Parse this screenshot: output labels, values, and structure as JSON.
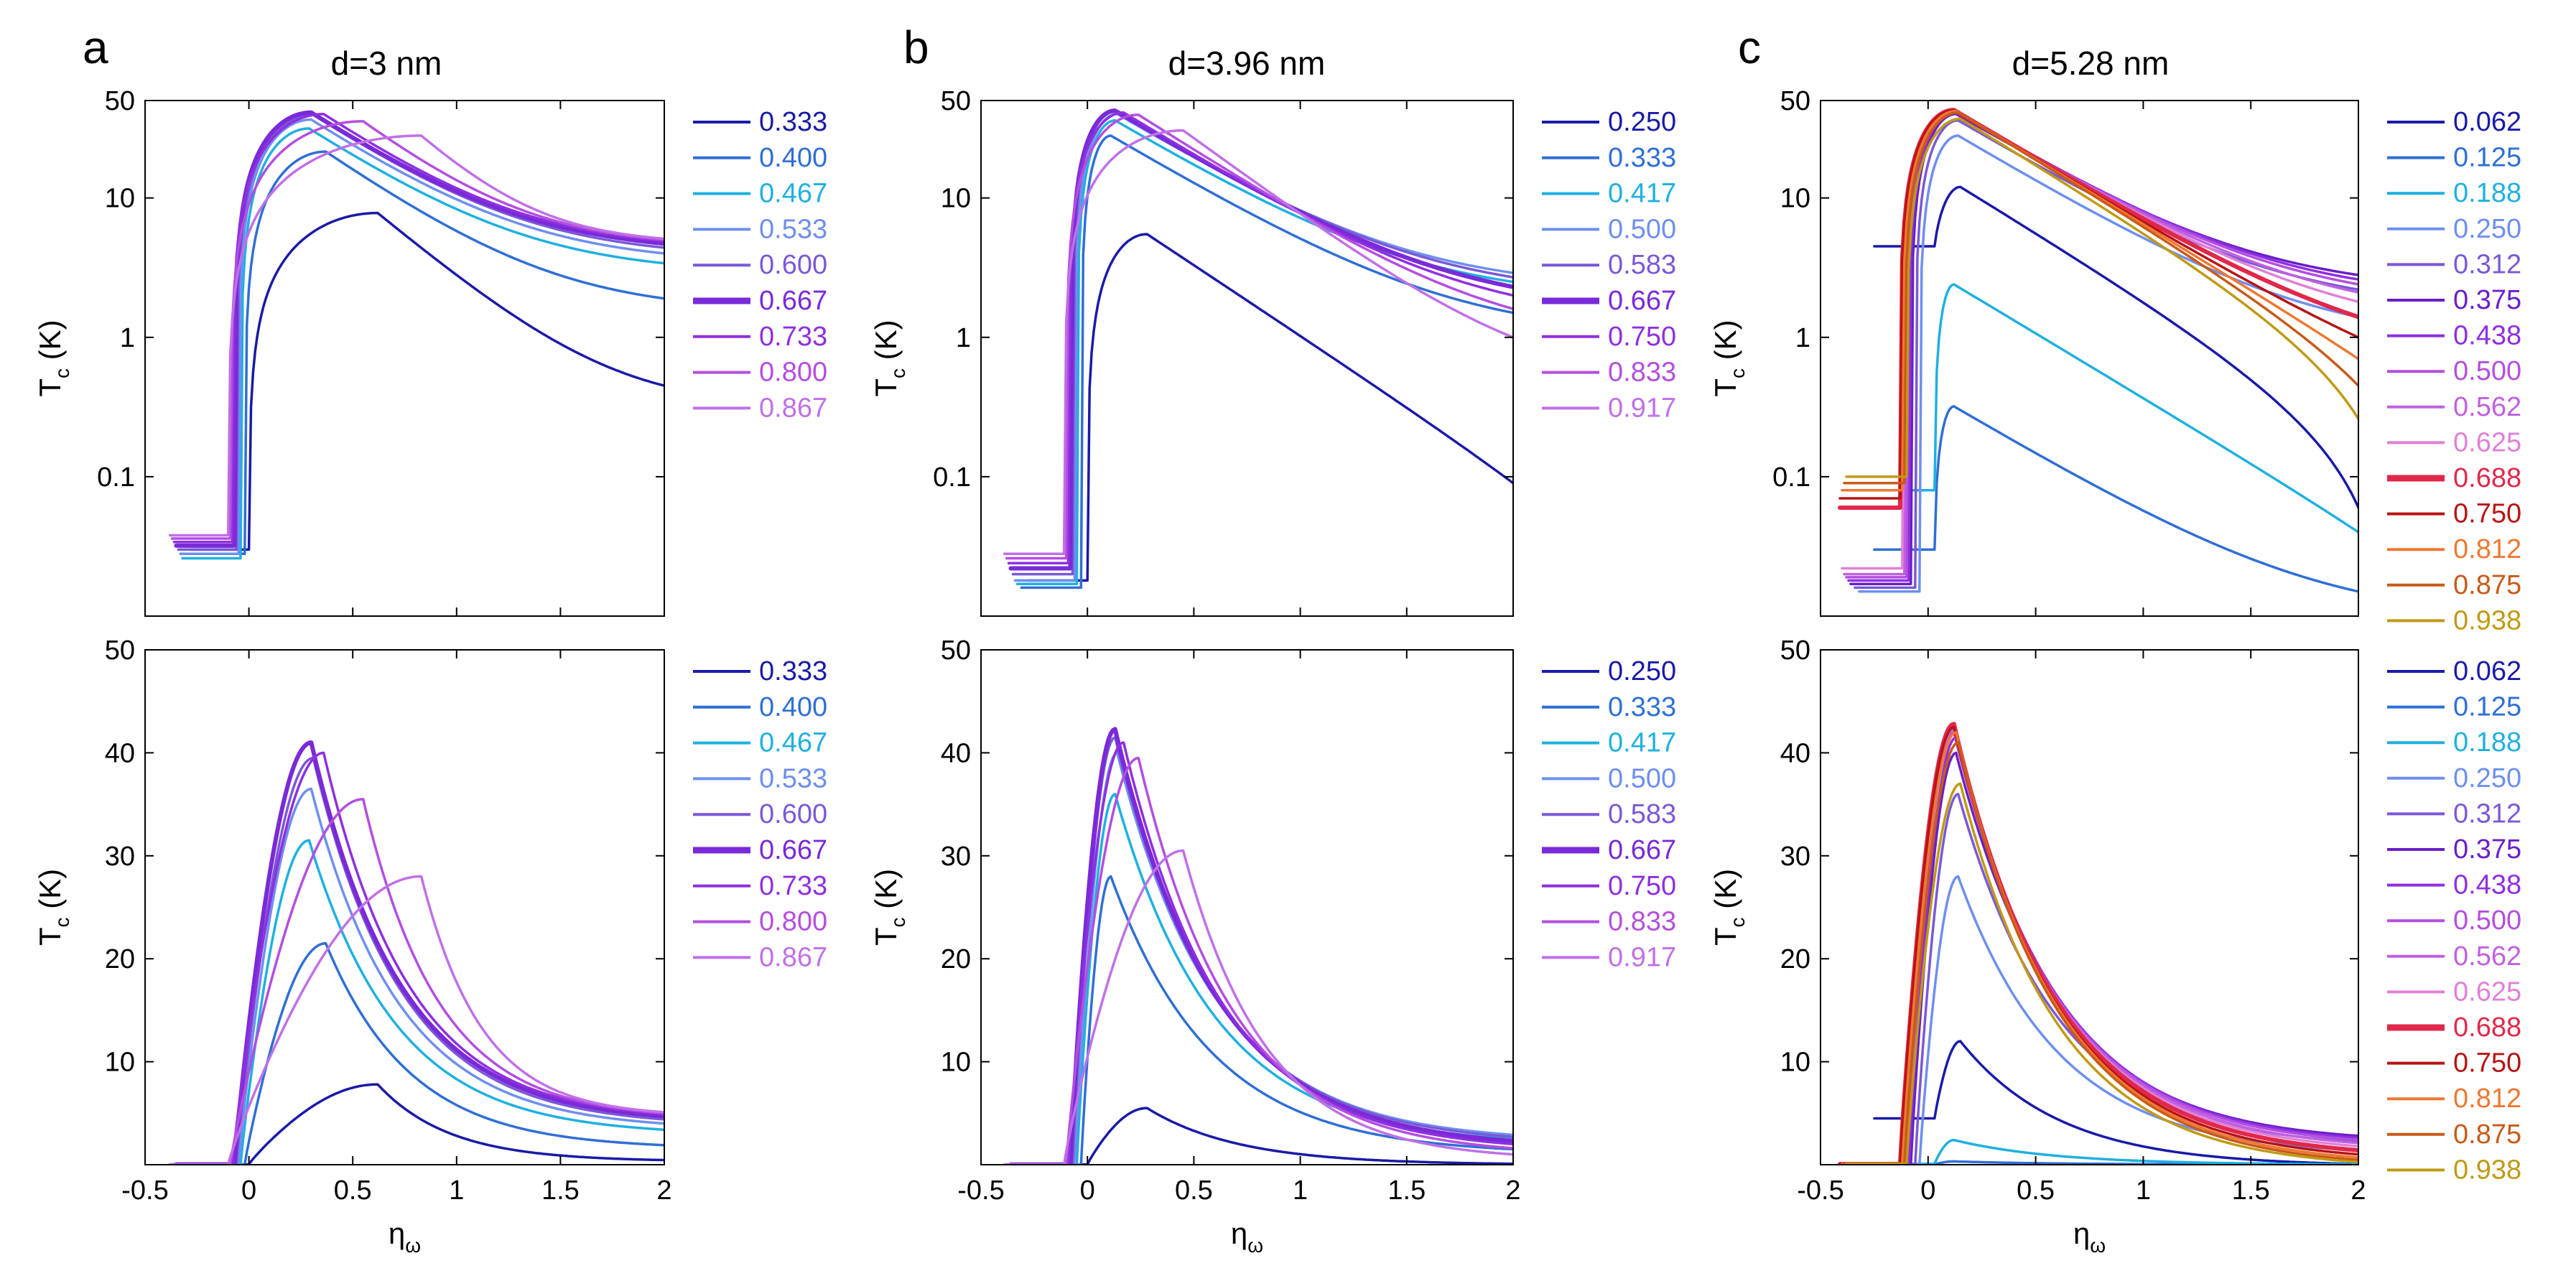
{
  "chart_data": [
    {
      "type": "line",
      "panel": "a",
      "row": "top",
      "title": "d=3 nm",
      "xlabel": "η_ω",
      "ylabel": "T_c (K)",
      "yscale": "log",
      "xlim": [
        -0.5,
        2
      ],
      "ylim": [
        0.01,
        50
      ],
      "xticks": [
        -0.5,
        0,
        0.5,
        1,
        1.5,
        2
      ],
      "xtick_labels": [],
      "yticks": [
        0.1,
        1,
        10,
        50
      ],
      "ytick_labels": [
        "0.1",
        "1",
        "10",
        "50"
      ],
      "legend_position": "right",
      "series": [
        {
          "name": "0.333",
          "color": "#1a1aa8",
          "bold": false,
          "peak_x": 0.62,
          "peak_y": 7.8,
          "onset": 0.0,
          "base": 0.03,
          "tail": 0.45
        },
        {
          "name": "0.400",
          "color": "#2f6fd6",
          "bold": false,
          "peak_x": 0.37,
          "peak_y": 21.5,
          "onset": -0.02,
          "base": 0.028,
          "tail": 1.9
        },
        {
          "name": "0.467",
          "color": "#1fb0e0",
          "bold": false,
          "peak_x": 0.29,
          "peak_y": 31.5,
          "onset": -0.04,
          "base": 0.026,
          "tail": 3.4
        },
        {
          "name": "0.533",
          "color": "#6e8ff0",
          "bold": false,
          "peak_x": 0.3,
          "peak_y": 36.5,
          "onset": -0.05,
          "base": 0.028,
          "tail": 4.0
        },
        {
          "name": "0.600",
          "color": "#7a58d8",
          "bold": false,
          "peak_x": 0.31,
          "peak_y": 39.5,
          "onset": -0.06,
          "base": 0.03,
          "tail": 4.4
        },
        {
          "name": "0.667",
          "color": "#7a2ad8",
          "bold": true,
          "peak_x": 0.3,
          "peak_y": 41.0,
          "onset": -0.07,
          "base": 0.032,
          "tail": 4.7
        },
        {
          "name": "0.733",
          "color": "#8f2fe0",
          "bold": false,
          "peak_x": 0.36,
          "peak_y": 40.0,
          "onset": -0.08,
          "base": 0.034,
          "tail": 4.9
        },
        {
          "name": "0.800",
          "color": "#b44ee0",
          "bold": false,
          "peak_x": 0.55,
          "peak_y": 35.5,
          "onset": -0.09,
          "base": 0.036,
          "tail": 5.0
        },
        {
          "name": "0.867",
          "color": "#c070e8",
          "bold": false,
          "peak_x": 0.83,
          "peak_y": 28.0,
          "onset": -0.1,
          "base": 0.038,
          "tail": 5.1
        }
      ]
    },
    {
      "type": "line",
      "panel": "a",
      "row": "bottom",
      "title": "",
      "xlabel": "η_ω",
      "ylabel": "T_c (K)",
      "yscale": "linear",
      "xlim": [
        -0.5,
        2
      ],
      "ylim": [
        0,
        50
      ],
      "xticks": [
        -0.5,
        0,
        0.5,
        1,
        1.5,
        2
      ],
      "xtick_labels": [
        "-0.5",
        "0",
        "0.5",
        "1",
        "1.5",
        "2"
      ],
      "yticks": [
        10,
        20,
        30,
        40,
        50
      ],
      "ytick_labels": [
        "10",
        "20",
        "30",
        "40",
        "50"
      ],
      "legend_position": "right",
      "series": [
        {
          "name": "0.333",
          "color": "#1a1aa8",
          "bold": false,
          "peak_x": 0.62,
          "peak_y": 7.8,
          "onset": 0.0,
          "base": 0.03,
          "tail": 0.45
        },
        {
          "name": "0.400",
          "color": "#2f6fd6",
          "bold": false,
          "peak_x": 0.37,
          "peak_y": 21.5,
          "onset": -0.02,
          "base": 0.028,
          "tail": 1.9
        },
        {
          "name": "0.467",
          "color": "#1fb0e0",
          "bold": false,
          "peak_x": 0.29,
          "peak_y": 31.5,
          "onset": -0.04,
          "base": 0.026,
          "tail": 3.4
        },
        {
          "name": "0.533",
          "color": "#6e8ff0",
          "bold": false,
          "peak_x": 0.3,
          "peak_y": 36.5,
          "onset": -0.05,
          "base": 0.028,
          "tail": 4.0
        },
        {
          "name": "0.600",
          "color": "#7a58d8",
          "bold": false,
          "peak_x": 0.31,
          "peak_y": 39.5,
          "onset": -0.06,
          "base": 0.03,
          "tail": 4.4
        },
        {
          "name": "0.667",
          "color": "#7a2ad8",
          "bold": true,
          "peak_x": 0.3,
          "peak_y": 41.0,
          "onset": -0.07,
          "base": 0.032,
          "tail": 4.7
        },
        {
          "name": "0.733",
          "color": "#8f2fe0",
          "bold": false,
          "peak_x": 0.36,
          "peak_y": 40.0,
          "onset": -0.08,
          "base": 0.034,
          "tail": 4.9
        },
        {
          "name": "0.800",
          "color": "#b44ee0",
          "bold": false,
          "peak_x": 0.55,
          "peak_y": 35.5,
          "onset": -0.09,
          "base": 0.036,
          "tail": 5.0
        },
        {
          "name": "0.867",
          "color": "#c070e8",
          "bold": false,
          "peak_x": 0.83,
          "peak_y": 28.0,
          "onset": -0.1,
          "base": 0.038,
          "tail": 5.1
        }
      ]
    },
    {
      "type": "line",
      "panel": "b",
      "row": "top",
      "title": "d=3.96 nm",
      "xlabel": "η_ω",
      "ylabel": "T_c (K)",
      "yscale": "log",
      "xlim": [
        -0.5,
        2
      ],
      "ylim": [
        0.01,
        50
      ],
      "xticks": [
        -0.5,
        0,
        0.5,
        1,
        1.5,
        2
      ],
      "xtick_labels": [],
      "yticks": [
        0.1,
        1,
        10,
        50
      ],
      "ytick_labels": [
        "0.1",
        "1",
        "10",
        "50"
      ],
      "legend_position": "right",
      "series": [
        {
          "name": "0.250",
          "color": "#1a1aa8",
          "bold": false,
          "peak_x": 0.28,
          "peak_y": 5.5,
          "onset": 0.0,
          "base": 0.018,
          "tail": 0.09
        },
        {
          "name": "0.333",
          "color": "#2f6fd6",
          "bold": false,
          "peak_x": 0.11,
          "peak_y": 28.0,
          "onset": -0.03,
          "base": 0.016,
          "tail": 1.5
        },
        {
          "name": "0.417",
          "color": "#1fb0e0",
          "bold": false,
          "peak_x": 0.13,
          "peak_y": 36.0,
          "onset": -0.05,
          "base": 0.017,
          "tail": 2.5
        },
        {
          "name": "0.500",
          "color": "#6e8ff0",
          "bold": false,
          "peak_x": 0.14,
          "peak_y": 40.0,
          "onset": -0.06,
          "base": 0.018,
          "tail": 2.9
        },
        {
          "name": "0.583",
          "color": "#7a58d8",
          "bold": false,
          "peak_x": 0.13,
          "peak_y": 41.5,
          "onset": -0.07,
          "base": 0.02,
          "tail": 2.7
        },
        {
          "name": "0.667",
          "color": "#7a2ad8",
          "bold": true,
          "peak_x": 0.13,
          "peak_y": 42.3,
          "onset": -0.08,
          "base": 0.022,
          "tail": 2.3
        },
        {
          "name": "0.750",
          "color": "#8f2fe0",
          "bold": false,
          "peak_x": 0.17,
          "peak_y": 41.0,
          "onset": -0.09,
          "base": 0.024,
          "tail": 2.0
        },
        {
          "name": "0.833",
          "color": "#b44ee0",
          "bold": false,
          "peak_x": 0.24,
          "peak_y": 39.5,
          "onset": -0.1,
          "base": 0.026,
          "tail": 1.6
        },
        {
          "name": "0.917",
          "color": "#c070e8",
          "bold": false,
          "peak_x": 0.45,
          "peak_y": 30.5,
          "onset": -0.11,
          "base": 0.028,
          "tail": 1.0
        }
      ]
    },
    {
      "type": "line",
      "panel": "b",
      "row": "bottom",
      "title": "",
      "xlabel": "η_ω",
      "ylabel": "T_c (K)",
      "yscale": "linear",
      "xlim": [
        -0.5,
        2
      ],
      "ylim": [
        0,
        50
      ],
      "xticks": [
        -0.5,
        0,
        0.5,
        1,
        1.5,
        2
      ],
      "xtick_labels": [
        "-0.5",
        "0",
        "0.5",
        "1",
        "1.5",
        "2"
      ],
      "yticks": [
        10,
        20,
        30,
        40,
        50
      ],
      "ytick_labels": [
        "10",
        "20",
        "30",
        "40",
        "50"
      ],
      "legend_position": "right",
      "series": [
        {
          "name": "0.250",
          "color": "#1a1aa8",
          "bold": false,
          "peak_x": 0.28,
          "peak_y": 5.5,
          "onset": 0.0,
          "base": 0.018,
          "tail": 0.09
        },
        {
          "name": "0.333",
          "color": "#2f6fd6",
          "bold": false,
          "peak_x": 0.11,
          "peak_y": 28.0,
          "onset": -0.03,
          "base": 0.016,
          "tail": 1.5
        },
        {
          "name": "0.417",
          "color": "#1fb0e0",
          "bold": false,
          "peak_x": 0.13,
          "peak_y": 36.0,
          "onset": -0.05,
          "base": 0.017,
          "tail": 2.5
        },
        {
          "name": "0.500",
          "color": "#6e8ff0",
          "bold": false,
          "peak_x": 0.14,
          "peak_y": 40.0,
          "onset": -0.06,
          "base": 0.018,
          "tail": 2.9
        },
        {
          "name": "0.583",
          "color": "#7a58d8",
          "bold": false,
          "peak_x": 0.13,
          "peak_y": 41.5,
          "onset": -0.07,
          "base": 0.02,
          "tail": 2.7
        },
        {
          "name": "0.667",
          "color": "#7a2ad8",
          "bold": true,
          "peak_x": 0.13,
          "peak_y": 42.3,
          "onset": -0.08,
          "base": 0.022,
          "tail": 2.3
        },
        {
          "name": "0.750",
          "color": "#8f2fe0",
          "bold": false,
          "peak_x": 0.17,
          "peak_y": 41.0,
          "onset": -0.09,
          "base": 0.024,
          "tail": 2.0
        },
        {
          "name": "0.833",
          "color": "#b44ee0",
          "bold": false,
          "peak_x": 0.24,
          "peak_y": 39.5,
          "onset": -0.1,
          "base": 0.026,
          "tail": 1.6
        },
        {
          "name": "0.917",
          "color": "#c070e8",
          "bold": false,
          "peak_x": 0.45,
          "peak_y": 30.5,
          "onset": -0.11,
          "base": 0.028,
          "tail": 1.0
        }
      ]
    },
    {
      "type": "line",
      "panel": "c",
      "row": "top",
      "title": "d=5.28 nm",
      "xlabel": "η_ω",
      "ylabel": "T_c (K)",
      "yscale": "log",
      "xlim": [
        -0.5,
        2
      ],
      "ylim": [
        0.01,
        50
      ],
      "xticks": [
        -0.5,
        0,
        0.5,
        1,
        1.5,
        2
      ],
      "xtick_labels": [],
      "yticks": [
        0.1,
        1,
        10,
        50
      ],
      "ytick_labels": [
        "0.1",
        "1",
        "10",
        "50"
      ],
      "legend_position": "right",
      "series": [
        {
          "name": "0.062",
          "color": "#1a1aa8",
          "bold": false,
          "peak_x": 0.15,
          "peak_y": 12.0,
          "onset": 0.03,
          "base": 4.5,
          "tail": 0.06
        },
        {
          "name": "0.125",
          "color": "#2f6fd6",
          "bold": false,
          "peak_x": 0.12,
          "peak_y": 0.32,
          "onset": 0.03,
          "base": 0.03,
          "tail": 0.015
        },
        {
          "name": "0.188",
          "color": "#1fb0e0",
          "bold": false,
          "peak_x": 0.12,
          "peak_y": 2.4,
          "onset": 0.03,
          "base": 0.08,
          "tail": 0.04
        },
        {
          "name": "0.250",
          "color": "#6e8ff0",
          "bold": false,
          "peak_x": 0.14,
          "peak_y": 28.0,
          "onset": -0.04,
          "base": 0.015,
          "tail": 1.4
        },
        {
          "name": "0.312",
          "color": "#7a58d8",
          "bold": false,
          "peak_x": 0.14,
          "peak_y": 36.0,
          "onset": -0.06,
          "base": 0.016,
          "tail": 2.2
        },
        {
          "name": "0.375",
          "color": "#6a1fc8",
          "bold": false,
          "peak_x": 0.13,
          "peak_y": 40.0,
          "onset": -0.08,
          "base": 0.017,
          "tail": 2.8
        },
        {
          "name": "0.438",
          "color": "#8f2fe0",
          "bold": false,
          "peak_x": 0.13,
          "peak_y": 41.5,
          "onset": -0.09,
          "base": 0.018,
          "tail": 2.6
        },
        {
          "name": "0.500",
          "color": "#b44ee0",
          "bold": false,
          "peak_x": 0.12,
          "peak_y": 42.0,
          "onset": -0.1,
          "base": 0.019,
          "tail": 2.4
        },
        {
          "name": "0.562",
          "color": "#c060e0",
          "bold": false,
          "peak_x": 0.12,
          "peak_y": 42.3,
          "onset": -0.11,
          "base": 0.02,
          "tail": 2.1
        },
        {
          "name": "0.625",
          "color": "#e080d8",
          "bold": false,
          "peak_x": 0.12,
          "peak_y": 42.5,
          "onset": -0.12,
          "base": 0.022,
          "tail": 1.8
        },
        {
          "name": "0.688",
          "color": "#e0284a",
          "bold": true,
          "peak_x": 0.12,
          "peak_y": 42.8,
          "onset": -0.13,
          "base": 0.06,
          "tail": 1.4
        },
        {
          "name": "0.750",
          "color": "#b81414",
          "bold": false,
          "peak_x": 0.12,
          "peak_y": 42.5,
          "onset": -0.13,
          "base": 0.07,
          "tail": 1.0
        },
        {
          "name": "0.812",
          "color": "#f07830",
          "bold": false,
          "peak_x": 0.13,
          "peak_y": 42.0,
          "onset": -0.12,
          "base": 0.08,
          "tail": 0.7
        },
        {
          "name": "0.875",
          "color": "#c85a18",
          "bold": false,
          "peak_x": 0.14,
          "peak_y": 41.0,
          "onset": -0.11,
          "base": 0.09,
          "tail": 0.45
        },
        {
          "name": "0.938",
          "color": "#c09a14",
          "bold": false,
          "peak_x": 0.15,
          "peak_y": 37.0,
          "onset": -0.1,
          "base": 0.1,
          "tail": 0.26
        }
      ]
    },
    {
      "type": "line",
      "panel": "c",
      "row": "bottom",
      "title": "",
      "xlabel": "η_ω",
      "ylabel": "T_c (K)",
      "yscale": "linear",
      "xlim": [
        -0.5,
        2
      ],
      "ylim": [
        0,
        50
      ],
      "xticks": [
        -0.5,
        0,
        0.5,
        1,
        1.5,
        2
      ],
      "xtick_labels": [
        "-0.5",
        "0",
        "0.5",
        "1",
        "1.5",
        "2"
      ],
      "yticks": [
        10,
        20,
        30,
        40,
        50
      ],
      "ytick_labels": [
        "10",
        "20",
        "30",
        "40",
        "50"
      ],
      "legend_position": "right",
      "series": [
        {
          "name": "0.062",
          "color": "#1a1aa8",
          "bold": false,
          "peak_x": 0.15,
          "peak_y": 12.0,
          "onset": 0.03,
          "base": 4.5,
          "tail": 0.06
        },
        {
          "name": "0.125",
          "color": "#2f6fd6",
          "bold": false,
          "peak_x": 0.12,
          "peak_y": 0.32,
          "onset": 0.03,
          "base": 0.03,
          "tail": 0.015
        },
        {
          "name": "0.188",
          "color": "#1fb0e0",
          "bold": false,
          "peak_x": 0.12,
          "peak_y": 2.4,
          "onset": 0.03,
          "base": 0.08,
          "tail": 0.04
        },
        {
          "name": "0.250",
          "color": "#6e8ff0",
          "bold": false,
          "peak_x": 0.14,
          "peak_y": 28.0,
          "onset": -0.04,
          "base": 0.015,
          "tail": 1.4
        },
        {
          "name": "0.312",
          "color": "#7a58d8",
          "bold": false,
          "peak_x": 0.14,
          "peak_y": 36.0,
          "onset": -0.06,
          "base": 0.016,
          "tail": 2.2
        },
        {
          "name": "0.375",
          "color": "#6a1fc8",
          "bold": false,
          "peak_x": 0.13,
          "peak_y": 40.0,
          "onset": -0.08,
          "base": 0.017,
          "tail": 2.8
        },
        {
          "name": "0.438",
          "color": "#8f2fe0",
          "bold": false,
          "peak_x": 0.13,
          "peak_y": 41.5,
          "onset": -0.09,
          "base": 0.018,
          "tail": 2.6
        },
        {
          "name": "0.500",
          "color": "#b44ee0",
          "bold": false,
          "peak_x": 0.12,
          "peak_y": 42.0,
          "onset": -0.1,
          "base": 0.019,
          "tail": 2.4
        },
        {
          "name": "0.562",
          "color": "#c060e0",
          "bold": false,
          "peak_x": 0.12,
          "peak_y": 42.3,
          "onset": -0.11,
          "base": 0.02,
          "tail": 2.1
        },
        {
          "name": "0.625",
          "color": "#e080d8",
          "bold": false,
          "peak_x": 0.12,
          "peak_y": 42.5,
          "onset": -0.12,
          "base": 0.022,
          "tail": 1.8
        },
        {
          "name": "0.688",
          "color": "#e0284a",
          "bold": true,
          "peak_x": 0.12,
          "peak_y": 42.8,
          "onset": -0.13,
          "base": 0.06,
          "tail": 1.4
        },
        {
          "name": "0.750",
          "color": "#b81414",
          "bold": false,
          "peak_x": 0.12,
          "peak_y": 42.5,
          "onset": -0.13,
          "base": 0.07,
          "tail": 1.0
        },
        {
          "name": "0.812",
          "color": "#f07830",
          "bold": false,
          "peak_x": 0.13,
          "peak_y": 42.0,
          "onset": -0.12,
          "base": 0.08,
          "tail": 0.7
        },
        {
          "name": "0.875",
          "color": "#c85a18",
          "bold": false,
          "peak_x": 0.14,
          "peak_y": 41.0,
          "onset": -0.11,
          "base": 0.09,
          "tail": 0.45
        },
        {
          "name": "0.938",
          "color": "#c09a14",
          "bold": false,
          "peak_x": 0.15,
          "peak_y": 37.0,
          "onset": -0.1,
          "base": 0.1,
          "tail": 0.26
        }
      ]
    }
  ]
}
